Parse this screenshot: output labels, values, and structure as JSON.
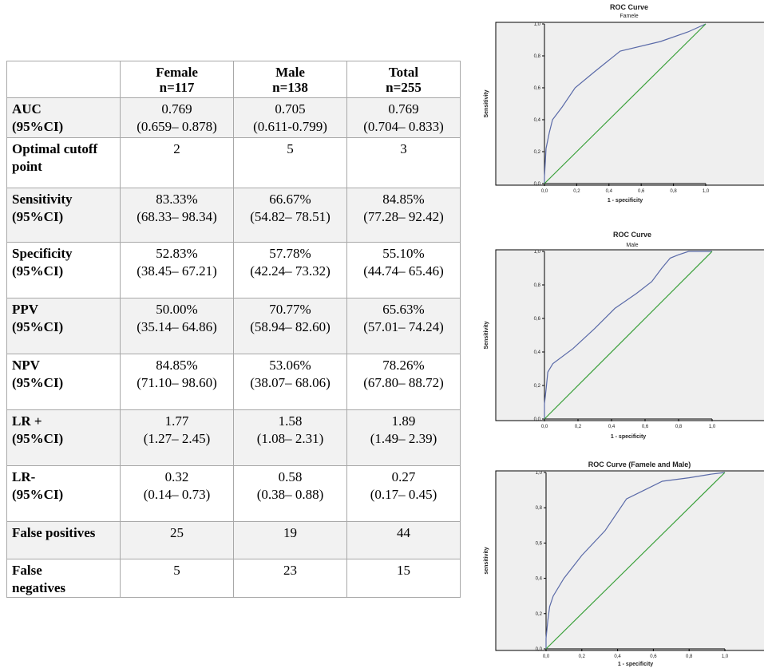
{
  "table": {
    "headers": [
      {
        "line1": "",
        "line2": ""
      },
      {
        "line1": "Female",
        "line2": "n=117"
      },
      {
        "line1": "Male",
        "line2": "n=138"
      },
      {
        "line1": "Total",
        "line2": "n=255"
      }
    ],
    "rows": [
      {
        "label1": "AUC",
        "label2": "(95%CI)",
        "female": [
          "0.769",
          "(0.659– 0.878)"
        ],
        "male": [
          "0.705",
          "(0.611-0.799)"
        ],
        "total": [
          "0.769",
          "(0.704– 0.833)"
        ]
      },
      {
        "label1": "Optimal cutoff",
        "label2": "point",
        "female": [
          "2",
          ""
        ],
        "male": [
          "5",
          ""
        ],
        "total": [
          "3",
          ""
        ]
      },
      {
        "label1": "Sensitivity",
        "label2": "(95%CI)",
        "female": [
          "83.33%",
          "(68.33– 98.34)"
        ],
        "male": [
          "66.67%",
          "(54.82– 78.51)"
        ],
        "total": [
          "84.85%",
          "(77.28– 92.42)"
        ]
      },
      {
        "label1": "Specificity",
        "label2": "(95%CI)",
        "female": [
          "52.83%",
          "(38.45– 67.21)"
        ],
        "male": [
          "57.78%",
          "(42.24– 73.32)"
        ],
        "total": [
          "55.10%",
          "(44.74– 65.46)"
        ]
      },
      {
        "label1": "PPV",
        "label2": "(95%CI)",
        "female": [
          "50.00%",
          "(35.14– 64.86)"
        ],
        "male": [
          "70.77%",
          "(58.94– 82.60)"
        ],
        "total": [
          "65.63%",
          "(57.01– 74.24)"
        ]
      },
      {
        "label1": "NPV",
        "label2": "(95%CI)",
        "female": [
          "84.85%",
          "(71.10– 98.60)"
        ],
        "male": [
          "53.06%",
          "(38.07– 68.06)"
        ],
        "total": [
          "78.26%",
          "(67.80– 88.72)"
        ]
      },
      {
        "label1": "LR +",
        "label2": "(95%CI)",
        "female": [
          "1.77",
          "(1.27– 2.45)"
        ],
        "male": [
          "1.58",
          "(1.08– 2.31)"
        ],
        "total": [
          "1.89",
          "(1.49– 2.39)"
        ]
      },
      {
        "label1": "LR-",
        "label2": "(95%CI)",
        "female": [
          "0.32",
          "(0.14– 0.73)"
        ],
        "male": [
          "0.58",
          "(0.38– 0.88)"
        ],
        "total": [
          "0.27",
          "(0.17– 0.45)"
        ]
      },
      {
        "label1": "False positives",
        "label2": "",
        "female": [
          "25",
          ""
        ],
        "male": [
          "19",
          ""
        ],
        "total": [
          "44",
          ""
        ]
      },
      {
        "label1": "False",
        "label2": "negatives",
        "female": [
          "5",
          ""
        ],
        "male": [
          "23",
          ""
        ],
        "total": [
          "15",
          ""
        ]
      }
    ]
  },
  "chart_data": [
    {
      "type": "line",
      "title": "ROC Curve",
      "subtitle": "Famele",
      "xlabel": "1 - specificity",
      "ylabel": "Sensitivity",
      "xlim": [
        0,
        1
      ],
      "ylim": [
        0,
        1
      ],
      "ticks": [
        "0,0",
        "0,2",
        "0,4",
        "0,6",
        "0,8",
        "1,0"
      ],
      "series": [
        {
          "name": "ROC",
          "color": "#5a6aa8",
          "x": [
            0,
            0,
            0.01,
            0.03,
            0.05,
            0.11,
            0.19,
            0.31,
            0.47,
            0.72,
            0.89,
            1.0
          ],
          "y": [
            0,
            0.04,
            0.22,
            0.32,
            0.4,
            0.48,
            0.6,
            0.7,
            0.83,
            0.89,
            0.95,
            1.0
          ]
        },
        {
          "name": "Reference Line",
          "color": "#3aa03a",
          "x": [
            0,
            1
          ],
          "y": [
            0,
            1
          ]
        }
      ]
    },
    {
      "type": "line",
      "title": "ROC Curve",
      "subtitle": "Male",
      "xlabel": "1 - specificity",
      "ylabel": "Sensitivity",
      "xlim": [
        0,
        1
      ],
      "ylim": [
        0,
        1
      ],
      "ticks": [
        "0,0",
        "0,2",
        "0,4",
        "0,6",
        "0,8",
        "1,0"
      ],
      "series": [
        {
          "name": "ROC",
          "color": "#5a6aa8",
          "x": [
            0,
            0,
            0.01,
            0.02,
            0.05,
            0.17,
            0.3,
            0.42,
            0.55,
            0.64,
            0.7,
            0.75,
            0.8,
            0.86,
            1.0
          ],
          "y": [
            0,
            0.09,
            0.18,
            0.28,
            0.33,
            0.42,
            0.54,
            0.66,
            0.75,
            0.82,
            0.9,
            0.96,
            0.98,
            1.0,
            1.0
          ]
        },
        {
          "name": "Reference Line",
          "color": "#3aa03a",
          "x": [
            0,
            1
          ],
          "y": [
            0,
            1
          ]
        }
      ]
    },
    {
      "type": "line",
      "title": "ROC Curve (Famele and Male)",
      "subtitle": "",
      "xlabel": "1 - specificity",
      "ylabel": "sensitivity",
      "xlim": [
        0,
        1
      ],
      "ylim": [
        0,
        1
      ],
      "ticks": [
        "0,0",
        "0,2",
        "0,4",
        "0,6",
        "0,8",
        "1,0"
      ],
      "series": [
        {
          "name": "ROC",
          "color": "#5a6aa8",
          "x": [
            0,
            0,
            0.01,
            0.02,
            0.04,
            0.1,
            0.2,
            0.33,
            0.45,
            0.55,
            0.65,
            0.8,
            0.92,
            1.0
          ],
          "y": [
            0,
            0.06,
            0.16,
            0.24,
            0.3,
            0.4,
            0.53,
            0.67,
            0.85,
            0.9,
            0.95,
            0.97,
            0.99,
            1.0
          ]
        },
        {
          "name": "Reference Line",
          "color": "#3aa03a",
          "x": [
            0,
            1
          ],
          "y": [
            0,
            1
          ]
        }
      ]
    }
  ]
}
